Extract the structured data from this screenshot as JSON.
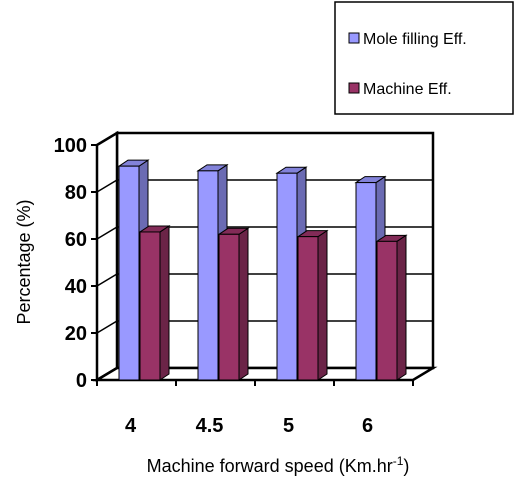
{
  "chart_data": {
    "type": "bar",
    "style": "3d-clustered-column",
    "categories": [
      "4",
      "4.5",
      "5",
      "6"
    ],
    "series": [
      {
        "name": "Mole filling Eff.",
        "values": [
          91,
          89,
          88,
          84
        ],
        "color": "#9999FF"
      },
      {
        "name": "Machine Eff.",
        "values": [
          63,
          62,
          61,
          59
        ],
        "color": "#993366"
      }
    ],
    "xlabel": "Machine forward speed (Km.hr",
    "xlabel_superscript": "-1",
    "xlabel_suffix": ")",
    "ylabel": "Percentage (%)",
    "ylim": [
      0,
      100
    ],
    "yticks": [
      "0",
      "20",
      "40",
      "60",
      "80",
      "100"
    ],
    "grid": true,
    "legend_position": "top-right"
  }
}
